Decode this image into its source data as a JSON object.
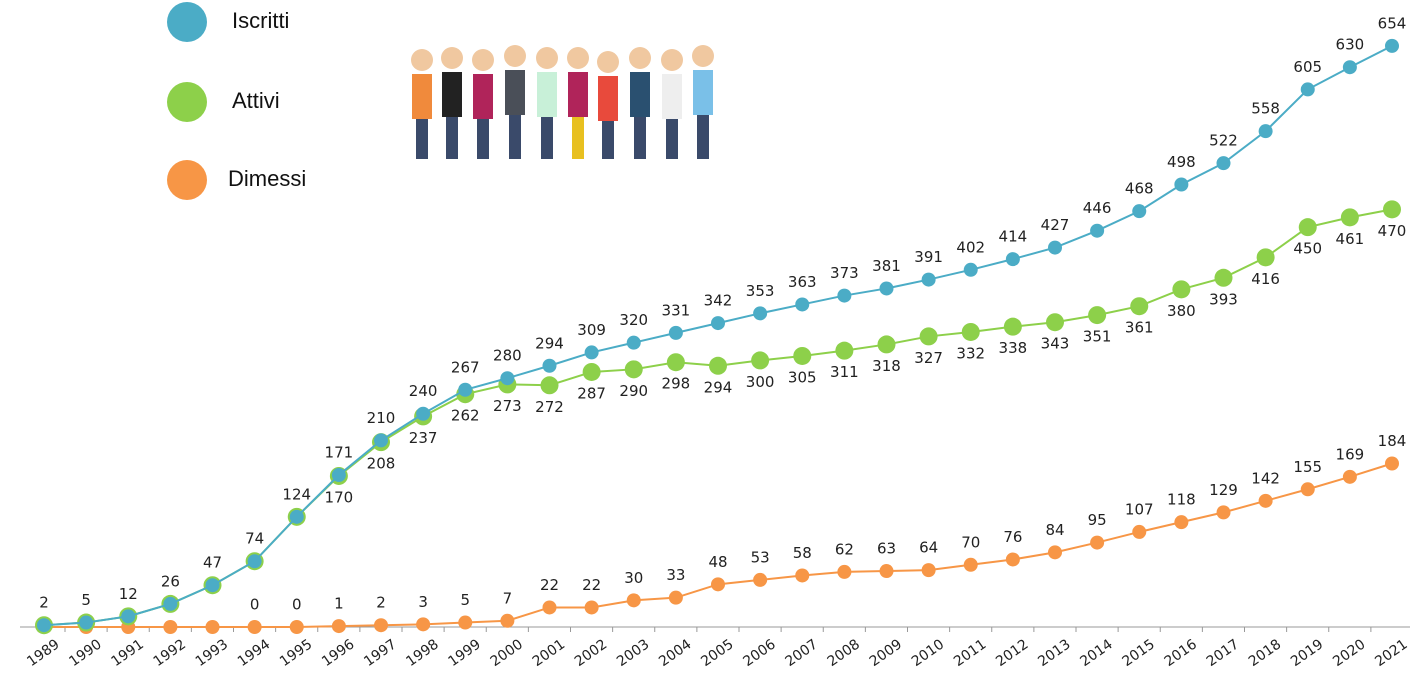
{
  "chart_data": {
    "type": "line",
    "categories": [
      "1989",
      "1990",
      "1991",
      "1992",
      "1993",
      "1994",
      "1995",
      "1996",
      "1997",
      "1998",
      "1999",
      "2000",
      "2001",
      "2002",
      "2003",
      "2004",
      "2005",
      "2006",
      "2007",
      "2008",
      "2009",
      "2010",
      "2011",
      "2012",
      "2013",
      "2014",
      "2015",
      "2016",
      "2017",
      "2018",
      "2019",
      "2020",
      "2021"
    ],
    "ylim": [
      0,
      700
    ],
    "series": [
      {
        "name": "Iscritti",
        "color": "#4bacc6",
        "values": [
          2,
          5,
          12,
          26,
          47,
          74,
          124,
          171,
          210,
          240,
          267,
          280,
          294,
          309,
          320,
          331,
          342,
          353,
          363,
          373,
          381,
          391,
          402,
          414,
          427,
          446,
          468,
          498,
          522,
          558,
          605,
          630,
          654
        ]
      },
      {
        "name": "Attivi",
        "color": "#8dd04a",
        "values": [
          2,
          5,
          12,
          26,
          47,
          74,
          124,
          170,
          208,
          237,
          262,
          273,
          272,
          287,
          290,
          298,
          294,
          300,
          305,
          311,
          318,
          327,
          332,
          338,
          343,
          351,
          361,
          380,
          393,
          416,
          450,
          461,
          470
        ],
        "value_labels": [
          null,
          null,
          null,
          null,
          null,
          null,
          null,
          "170",
          "208",
          "237",
          "262",
          "273",
          "272",
          "287",
          "290",
          "298",
          "294",
          "300",
          "305",
          "311",
          "318",
          "327",
          "332",
          "338",
          "343",
          "351",
          "361",
          "380",
          "393",
          "416",
          "450",
          "461",
          "470"
        ]
      },
      {
        "name": "Dimessi",
        "color": "#f79646",
        "values": [
          0,
          0,
          0,
          0,
          0,
          0,
          0,
          1,
          2,
          3,
          5,
          7,
          22,
          22,
          30,
          33,
          48,
          53,
          58,
          62,
          63,
          64,
          70,
          76,
          84,
          95,
          107,
          118,
          129,
          142,
          155,
          169,
          184
        ],
        "value_labels": [
          null,
          null,
          null,
          null,
          null,
          "0",
          "0",
          "1",
          "2",
          "3",
          "5",
          "7",
          "22",
          "22",
          "30",
          "33",
          "48",
          "53",
          "58",
          "62",
          "63",
          "64",
          "70",
          "76",
          "84",
          "95",
          "107",
          "118",
          "129",
          "142",
          "155",
          "169",
          "184"
        ]
      }
    ]
  }
}
